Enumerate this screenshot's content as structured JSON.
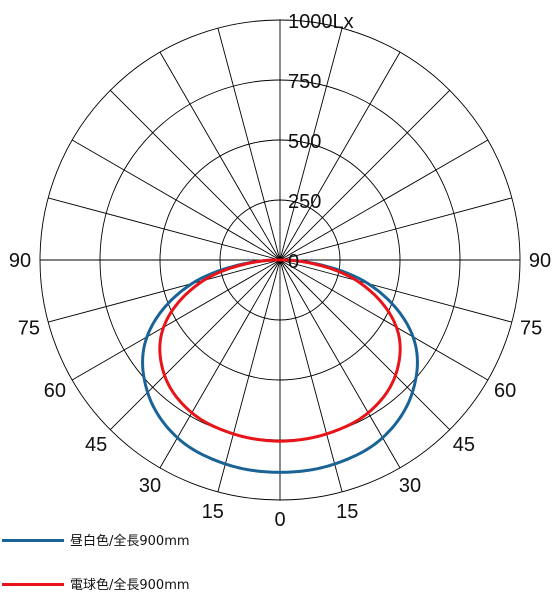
{
  "chart_data": {
    "type": "polar",
    "unit": "Lx",
    "radial_max": 1000,
    "radial_ticks": [
      0,
      250,
      500,
      750,
      1000
    ],
    "radial_tick_labels": [
      "0",
      "250",
      "500",
      "750",
      "1000Lx"
    ],
    "angle_step_deg": 15,
    "angle_labels_left": [
      "90",
      "75",
      "60",
      "45",
      "30",
      "15"
    ],
    "angle_labels_bottom": [
      "0"
    ],
    "angle_labels_right": [
      "15",
      "30",
      "45",
      "60",
      "75",
      "90"
    ],
    "series": [
      {
        "name": "昼白色/全長900mm",
        "color": "#1a6396",
        "angles": [
          0,
          15,
          30,
          45,
          60,
          75,
          90
        ],
        "values": [
          885,
          880,
          855,
          780,
          640,
          380,
          30
        ]
      },
      {
        "name": "電球色/全長900mm",
        "color": "#e8141a",
        "angles": [
          0,
          15,
          30,
          45,
          60,
          75,
          90
        ],
        "values": [
          755,
          750,
          735,
          680,
          560,
          330,
          30
        ]
      }
    ]
  }
}
